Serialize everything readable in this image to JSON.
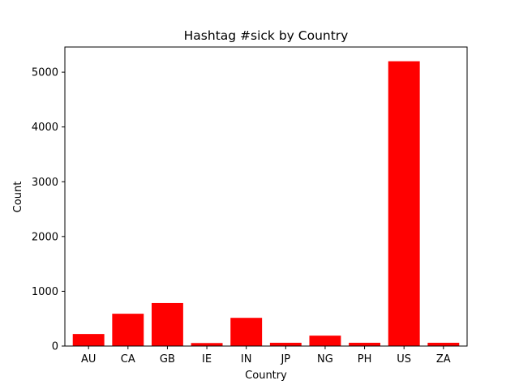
{
  "chart_data": {
    "type": "bar",
    "title": "Hashtag #sick by Country",
    "xlabel": "Country",
    "ylabel": "Count",
    "categories": [
      "AU",
      "CA",
      "GB",
      "IE",
      "IN",
      "JP",
      "NG",
      "PH",
      "US",
      "ZA"
    ],
    "values": [
      220,
      590,
      785,
      55,
      515,
      60,
      190,
      60,
      5200,
      60
    ],
    "ylim": [
      0,
      5460
    ],
    "yticks": [
      0,
      1000,
      2000,
      3000,
      4000,
      5000
    ],
    "bar_color": "#ff0000",
    "grid": false
  }
}
